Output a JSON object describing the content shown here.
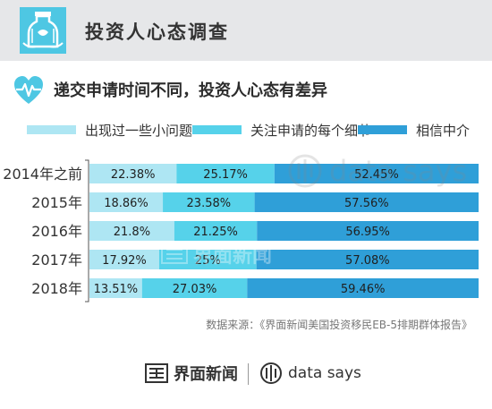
{
  "header": {
    "title": "投资人心态调查"
  },
  "subtitle": "递交申请时间不同，投资人心态有差异",
  "source": "数据来源：《界面新闻美国投资移民EB-5排期群体报告》",
  "footer": {
    "brand_label": "界面新闻",
    "datasays_label": "data says"
  },
  "watermark": {
    "brand_label": "界面新闻",
    "datasays_label": "data says"
  },
  "colors": {
    "header_bg": "#e6e7e9",
    "accent_teal": "#4ec7e3",
    "light": "#aee6f3",
    "mid": "#56d2ea",
    "dark": "#2f9fd8"
  },
  "icons": {
    "header_logo": "bottle-badge-icon",
    "subtitle": "heart-pulse-icon",
    "footer_brand": "jiemian-logo-icon",
    "footer_datasays": "data-says-logo-icon"
  },
  "chart_data": {
    "type": "bar",
    "orientation": "horizontal",
    "stacked": true,
    "percent_stacked": true,
    "categories": [
      "2014年之前",
      "2015年",
      "2016年",
      "2017年",
      "2018年"
    ],
    "series": [
      {
        "name": "出现过一些小问题",
        "color": "#aee6f3",
        "values": [
          22.38,
          18.86,
          21.8,
          17.92,
          13.51
        ],
        "labels": [
          "22.38%",
          "18.86%",
          "21.8%",
          "17.92%",
          "13.51%"
        ]
      },
      {
        "name": "关注申请的每个细节",
        "color": "#56d2ea",
        "values": [
          25.17,
          23.58,
          21.25,
          25,
          27.03
        ],
        "labels": [
          "25.17%",
          "23.58%",
          "21.25%",
          "25%",
          "27.03%"
        ]
      },
      {
        "name": "相信中介",
        "color": "#2f9fd8",
        "values": [
          52.45,
          57.56,
          56.95,
          57.08,
          59.46
        ],
        "labels": [
          "52.45%",
          "57.56%",
          "56.95%",
          "57.08%",
          "59.46%"
        ]
      }
    ],
    "xlim": [
      0,
      100
    ],
    "legend": "top",
    "grid": false
  }
}
